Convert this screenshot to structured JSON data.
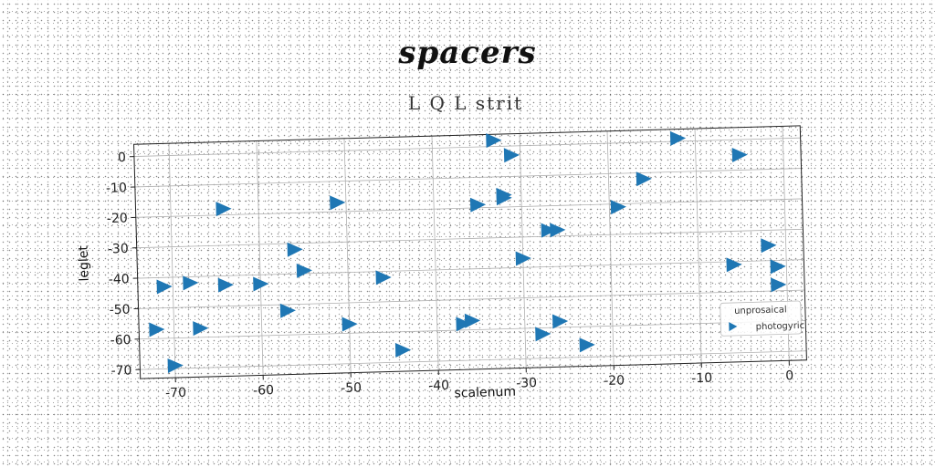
{
  "header": {
    "title": "spacers"
  },
  "chart_data": {
    "type": "scatter",
    "title": "L Q L strit",
    "xlabel": "scalenum",
    "ylabel": "leglet",
    "xlim": [
      -74,
      2
    ],
    "ylim": [
      -73,
      4
    ],
    "xticks": [
      -70,
      -60,
      -50,
      -40,
      -30,
      -20,
      -10,
      0
    ],
    "yticks": [
      0,
      -10,
      -20,
      -30,
      -40,
      -50,
      -60,
      -70
    ],
    "grid": true,
    "marker": "triangle-right",
    "color": "#1f77b4",
    "legend": {
      "title": "unprosaical",
      "entries": [
        "photogyric"
      ],
      "placement": "lower-right"
    },
    "series": [
      {
        "name": "photogyric",
        "points": [
          [
            -71,
            -43
          ],
          [
            -72,
            -57
          ],
          [
            -70,
            -69
          ],
          [
            -68,
            -42
          ],
          [
            -67,
            -57
          ],
          [
            -64,
            -18
          ],
          [
            -64,
            -43
          ],
          [
            -60,
            -43
          ],
          [
            -57,
            -52
          ],
          [
            -56,
            -32
          ],
          [
            -55,
            -39
          ],
          [
            -51,
            -17
          ],
          [
            -50,
            -57
          ],
          [
            -46,
            -42
          ],
          [
            -44,
            -66
          ],
          [
            -37,
            -58
          ],
          [
            -36,
            -57
          ],
          [
            -35,
            -19
          ],
          [
            -33,
            2
          ],
          [
            -32,
            -16
          ],
          [
            -32,
            -17
          ],
          [
            -31,
            -3
          ],
          [
            -30,
            -37
          ],
          [
            -28,
            -62
          ],
          [
            -27,
            -28
          ],
          [
            -26,
            -28
          ],
          [
            -26,
            -58
          ],
          [
            -23,
            -66
          ],
          [
            -19,
            -21
          ],
          [
            -16,
            -12
          ],
          [
            -12,
            1
          ],
          [
            -6,
            -41
          ],
          [
            -5,
            -5
          ],
          [
            -2,
            -35
          ],
          [
            -1,
            -42
          ],
          [
            -1,
            -48
          ]
        ]
      }
    ]
  }
}
